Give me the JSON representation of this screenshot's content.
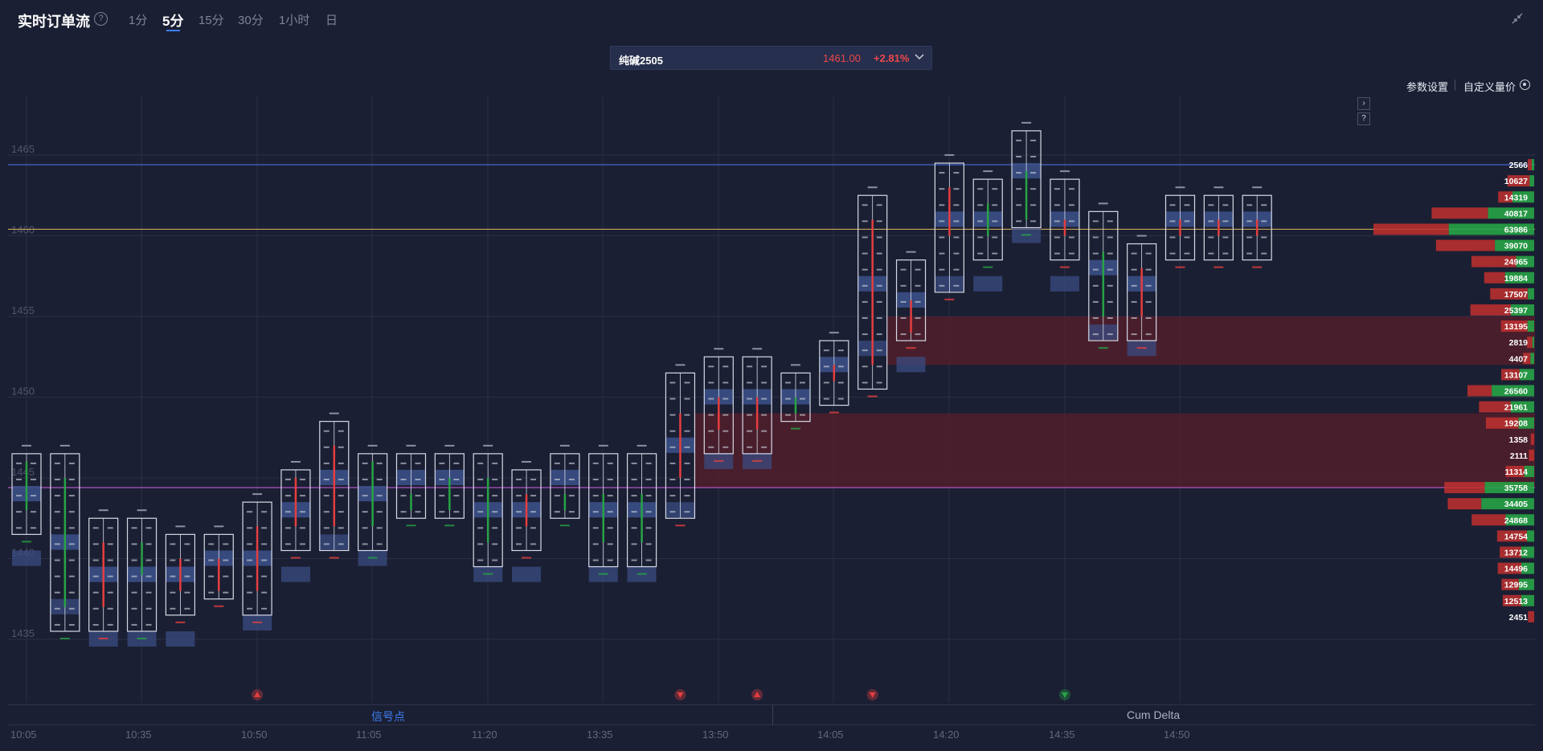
{
  "header": {
    "title": "实时订单流",
    "help": "?",
    "timeframes": [
      {
        "label": "1分",
        "active": false
      },
      {
        "label": "5分",
        "active": true
      },
      {
        "label": "15分",
        "active": false
      },
      {
        "label": "30分",
        "active": false
      },
      {
        "label": "1小时",
        "active": false
      },
      {
        "label": "日",
        "active": false
      }
    ]
  },
  "symbol": {
    "name": "纯碱2505",
    "price": "1461.00",
    "change": "+2.81%"
  },
  "toolbar": {
    "params_label": "参数设置",
    "custom_label": "自定义量价",
    "next_btn": "›",
    "help_btn": "?"
  },
  "bottom_tabs": {
    "signals": "信号点",
    "cum_delta": "Cum Delta"
  },
  "colors": {
    "background": "#1b1f33",
    "up": "#27a345",
    "down": "#e53e3e",
    "cell_blue": "#3b4f86",
    "bid_zone": "#5a1f2b",
    "accent": "#3c7ff2"
  },
  "chart_data": {
    "type": "footprint",
    "price_levels": [
      1465,
      1460,
      1455,
      1450,
      1445,
      1440,
      1435
    ],
    "time_labels": [
      "10:05",
      "10:35",
      "10:50",
      "11:05",
      "11:20",
      "13:35",
      "13:50",
      "14:05",
      "14:20",
      "14:35",
      "14:50"
    ],
    "horizontal_lines": [
      {
        "price": 1464.4,
        "color": "#4a6bd8"
      },
      {
        "price": 1460.4,
        "color": "#c9a55a"
      },
      {
        "price": 1444.4,
        "color": "#c25ad1"
      }
    ],
    "zones": [
      {
        "price_top": 1455,
        "price_bottom": 1452,
        "x_from_candle": 22
      },
      {
        "price_top": 1449,
        "price_bottom": 1444.4,
        "x_from_candle": 17
      }
    ],
    "candles": [
      {
        "open": 1446,
        "close": 1443,
        "high": 1446,
        "low": 1442,
        "dir": "up"
      },
      {
        "open": 1445,
        "close": 1437,
        "high": 1446,
        "low": 1436,
        "dir": "up"
      },
      {
        "open": 1441,
        "close": 1437,
        "high": 1442,
        "low": 1436,
        "dir": "down"
      },
      {
        "open": 1439,
        "close": 1441,
        "high": 1442,
        "low": 1436,
        "dir": "up"
      },
      {
        "open": 1440,
        "close": 1438,
        "high": 1441,
        "low": 1437,
        "dir": "down"
      },
      {
        "open": 1438,
        "close": 1440,
        "high": 1441,
        "low": 1438,
        "dir": "down"
      },
      {
        "open": 1438,
        "close": 1442,
        "high": 1443,
        "low": 1437,
        "dir": "down"
      },
      {
        "open": 1442,
        "close": 1445,
        "high": 1445,
        "low": 1441,
        "dir": "down"
      },
      {
        "open": 1442,
        "close": 1447,
        "high": 1448,
        "low": 1441,
        "dir": "down"
      },
      {
        "open": 1442,
        "close": 1446,
        "high": 1446,
        "low": 1441,
        "dir": "up"
      },
      {
        "open": 1443,
        "close": 1444,
        "high": 1446,
        "low": 1443,
        "dir": "up"
      },
      {
        "open": 1445,
        "close": 1443,
        "high": 1446,
        "low": 1443,
        "dir": "up"
      },
      {
        "open": 1445,
        "close": 1441,
        "high": 1446,
        "low": 1440,
        "dir": "up"
      },
      {
        "open": 1444,
        "close": 1442,
        "high": 1445,
        "low": 1441,
        "dir": "down"
      },
      {
        "open": 1444,
        "close": 1443,
        "high": 1446,
        "low": 1443,
        "dir": "up"
      },
      {
        "open": 1444,
        "close": 1441,
        "high": 1446,
        "low": 1440,
        "dir": "up"
      },
      {
        "open": 1444,
        "close": 1441,
        "high": 1446,
        "low": 1440,
        "dir": "up"
      },
      {
        "open": 1445,
        "close": 1449,
        "high": 1451,
        "low": 1443,
        "dir": "down"
      },
      {
        "open": 1450,
        "close": 1448,
        "high": 1452,
        "low": 1447,
        "dir": "down"
      },
      {
        "open": 1450,
        "close": 1448,
        "high": 1452,
        "low": 1447,
        "dir": "down"
      },
      {
        "open": 1449,
        "close": 1450,
        "high": 1451,
        "low": 1449,
        "dir": "up"
      },
      {
        "open": 1451,
        "close": 1452,
        "high": 1453,
        "low": 1450,
        "dir": "down"
      },
      {
        "open": 1452,
        "close": 1461,
        "high": 1462,
        "low": 1451,
        "dir": "down"
      },
      {
        "open": 1454,
        "close": 1456,
        "high": 1458,
        "low": 1454,
        "dir": "down"
      },
      {
        "open": 1460,
        "close": 1463,
        "high": 1464,
        "low": 1457,
        "dir": "down"
      },
      {
        "open": 1460,
        "close": 1462,
        "high": 1463,
        "low": 1459,
        "dir": "up"
      },
      {
        "open": 1461,
        "close": 1464,
        "high": 1466,
        "low": 1461,
        "dir": "up"
      },
      {
        "open": 1461,
        "close": 1460,
        "high": 1463,
        "low": 1459,
        "dir": "down"
      },
      {
        "open": 1459,
        "close": 1455,
        "high": 1461,
        "low": 1454,
        "dir": "up"
      },
      {
        "open": 1458,
        "close": 1455,
        "high": 1459,
        "low": 1454,
        "dir": "down"
      },
      {
        "open": 1460,
        "close": 1461,
        "high": 1462,
        "low": 1459,
        "dir": "down"
      },
      {
        "open": 1460,
        "close": 1461,
        "high": 1462,
        "low": 1459,
        "dir": "down"
      },
      {
        "open": 1461,
        "close": 1460,
        "high": 1462,
        "low": 1459,
        "dir": "down"
      }
    ],
    "signals": [
      {
        "candle": 6,
        "type": "up",
        "color": "#e53e3e"
      },
      {
        "candle": 17,
        "type": "down",
        "color": "#e53e3e"
      },
      {
        "candle": 19,
        "type": "up",
        "color": "#e53e3e"
      },
      {
        "candle": 22,
        "type": "down",
        "color": "#e53e3e"
      },
      {
        "candle": 27,
        "type": "down",
        "color": "#27a345"
      }
    ],
    "volume_profile": [
      {
        "value": 2566,
        "red": 0.1,
        "green": 0.06
      },
      {
        "value": 10627,
        "red": 0.25,
        "green": 0.05
      },
      {
        "value": 14319,
        "red": 0.2,
        "green": 0.3
      },
      {
        "value": 40817,
        "red": 0.55,
        "green": 0.45
      },
      {
        "value": 63986,
        "red": 0.75,
        "green": 0.85
      },
      {
        "value": 39070,
        "red": 0.6,
        "green": 0.4
      },
      {
        "value": 24965,
        "red": 0.45,
        "green": 0.18
      },
      {
        "value": 19884,
        "red": 0.18,
        "green": 0.25
      },
      {
        "value": 17507,
        "red": 0.3,
        "green": 0.05
      },
      {
        "value": 25397,
        "red": 0.35,
        "green": 0.2
      },
      {
        "value": 13195,
        "red": 0.2,
        "green": 0.05
      },
      {
        "value": 2819,
        "red": 0.06,
        "green": 0.02
      },
      {
        "value": 4407,
        "red": 0.08,
        "green": 0.04
      },
      {
        "value": 13107,
        "red": 0.15,
        "green": 0.12
      },
      {
        "value": 26560,
        "red": 0.2,
        "green": 0.35
      },
      {
        "value": 21961,
        "red": 0.3,
        "green": 0.22
      },
      {
        "value": 19208,
        "red": 0.25,
        "green": 0.12
      },
      {
        "value": 1358,
        "red": 0.03,
        "green": 0.0
      },
      {
        "value": 2111,
        "red": 0.05,
        "green": 0.0
      },
      {
        "value": 11314,
        "red": 0.15,
        "green": 0.08
      },
      {
        "value": 35758,
        "red": 0.45,
        "green": 0.55
      },
      {
        "value": 34405,
        "red": 0.35,
        "green": 0.55
      },
      {
        "value": 24868,
        "red": 0.3,
        "green": 0.25
      },
      {
        "value": 14754,
        "red": 0.25,
        "green": 0.06
      },
      {
        "value": 13712,
        "red": 0.2,
        "green": 0.12
      },
      {
        "value": 14496,
        "red": 0.22,
        "green": 0.12
      },
      {
        "value": 12995,
        "red": 0.18,
        "green": 0.16
      },
      {
        "value": 12513,
        "red": 0.2,
        "green": 0.14
      },
      {
        "value": 2451,
        "red": 0.05,
        "green": 0.0
      }
    ]
  }
}
